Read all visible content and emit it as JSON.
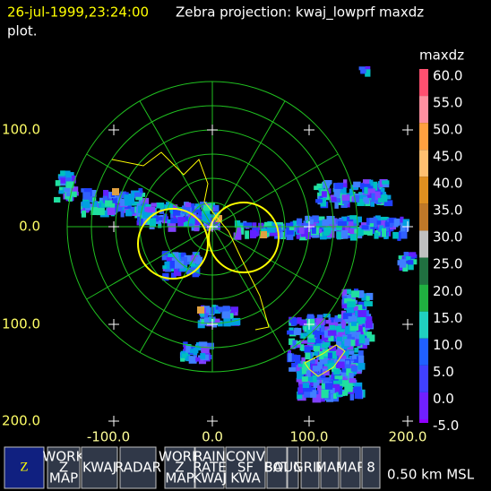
{
  "header": {
    "timestamp": "26-jul-1999,23:24:00",
    "title": "Zebra projection: kwaj_lowprf maxdz",
    "title_cont": "plot."
  },
  "plot": {
    "y_axis_labels": [
      "100.0",
      "0.0",
      "100.0",
      "200.0"
    ],
    "x_axis_labels": [
      "-100.0",
      "0.0",
      "100.0",
      "200.0"
    ]
  },
  "colorbar": {
    "title": "maxdz",
    "labels": [
      "60.0",
      "55.0",
      "50.0",
      "45.0",
      "40.0",
      "35.0",
      "30.0",
      "25.0",
      "20.0",
      "15.0",
      "10.0",
      "5.0",
      "0.0",
      "-5.0"
    ]
  },
  "toolbar": {
    "buttons": [
      {
        "lines": [
          "Z"
        ]
      },
      {
        "lines": [
          "WORK",
          "Z",
          "MAP"
        ]
      },
      {
        "lines": [
          "KWAJ"
        ]
      },
      {
        "lines": [
          "RADAR"
        ]
      },
      {
        "lines": [
          "WORK",
          "Z",
          "MAP"
        ]
      },
      {
        "lines": [
          "RAIN",
          "RATE",
          "KWAJ"
        ]
      },
      {
        "lines": [
          "CONV",
          "SF",
          "KWA"
        ]
      },
      {
        "lines": [
          "SAT"
        ]
      },
      {
        "lines": [
          "BOUNDS"
        ]
      },
      {
        "lines": [
          "GRID"
        ]
      },
      {
        "lines": [
          "MAP"
        ]
      },
      {
        "lines": [
          "MAP"
        ]
      },
      {
        "lines": [
          "8"
        ]
      }
    ]
  },
  "footer": {
    "altitude": "0.50 km MSL"
  }
}
